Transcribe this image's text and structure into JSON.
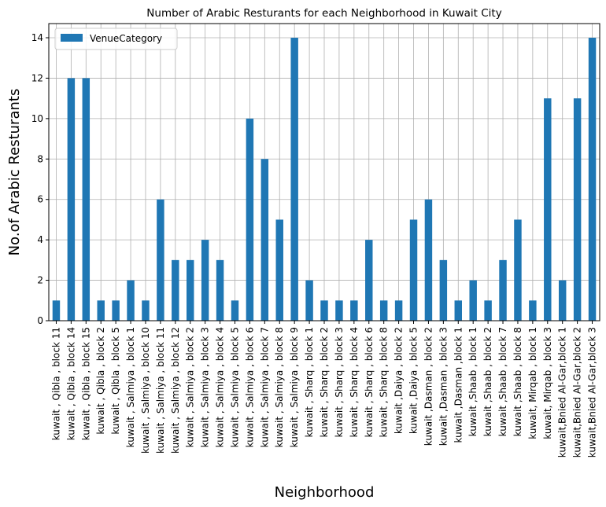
{
  "chart_data": {
    "type": "bar",
    "title": "Number of Arabic Resturants for each Neighborhood in Kuwait City",
    "xlabel": "Neighborhood",
    "ylabel": "No.of Arabic Resturants",
    "ylim": [
      0,
      14.7
    ],
    "yticks": [
      0,
      2,
      4,
      6,
      8,
      10,
      12,
      14
    ],
    "grid": true,
    "legend_position": "top-left",
    "bar_color": "#1f77b4",
    "categories": [
      "kuwait , Qibla , block 11",
      "kuwait , Qibla , block 14",
      "kuwait , Qibla , block 15",
      "kuwait , Qibla , block 2",
      "kuwait , Qibla , block 5",
      "kuwait , Salmiya , block 1",
      "kuwait , Salmiya , block 10",
      "kuwait , Salmiya , block 11",
      "kuwait , Salmiya , block 12",
      "kuwait , Salmiya , block 2",
      "kuwait , Salmiya , block 3",
      "kuwait , Salmiya , block 4",
      "kuwait , Salmiya , block 5",
      "kuwait , Salmiya , block 6",
      "kuwait , Salmiya , block 7",
      "kuwait , Salmiya , block 8",
      "kuwait , Salmiya , block 9",
      "kuwait , Sharq , block 1",
      "kuwait , Sharq , block 2",
      "kuwait , Sharq , block 3",
      "kuwait , Sharq , block 4",
      "kuwait , Sharq , block 6",
      "kuwait , Sharq , block 8",
      "kuwait ,Daiya , block 2",
      "kuwait ,Daiya , block 5",
      "kuwait ,Dasman , block 2",
      "kuwait ,Dasman , block 3",
      "kuwait ,Dasman ,block 1",
      "kuwait ,Shaab , block 1",
      "kuwait ,Shaab , block 2",
      "kuwait ,Shaab , block 7",
      "kuwait ,Shaab , block 8",
      "kuwait, Mirqab , block 1",
      "kuwait, Mirqab , block 3",
      "kuwait,Bnied Al-Gar,block 1",
      "kuwait,Bnied Al-Gar,block 2",
      "kuwait,Bnied Al-Gar,block 3"
    ],
    "series": [
      {
        "name": "VenueCategory",
        "values": [
          1,
          12,
          12,
          1,
          1,
          2,
          1,
          6,
          3,
          3,
          4,
          3,
          1,
          10,
          8,
          5,
          14,
          2,
          1,
          1,
          1,
          4,
          1,
          1,
          5,
          6,
          3,
          1,
          2,
          1,
          3,
          5,
          1,
          11,
          2,
          11,
          14
        ]
      }
    ]
  }
}
